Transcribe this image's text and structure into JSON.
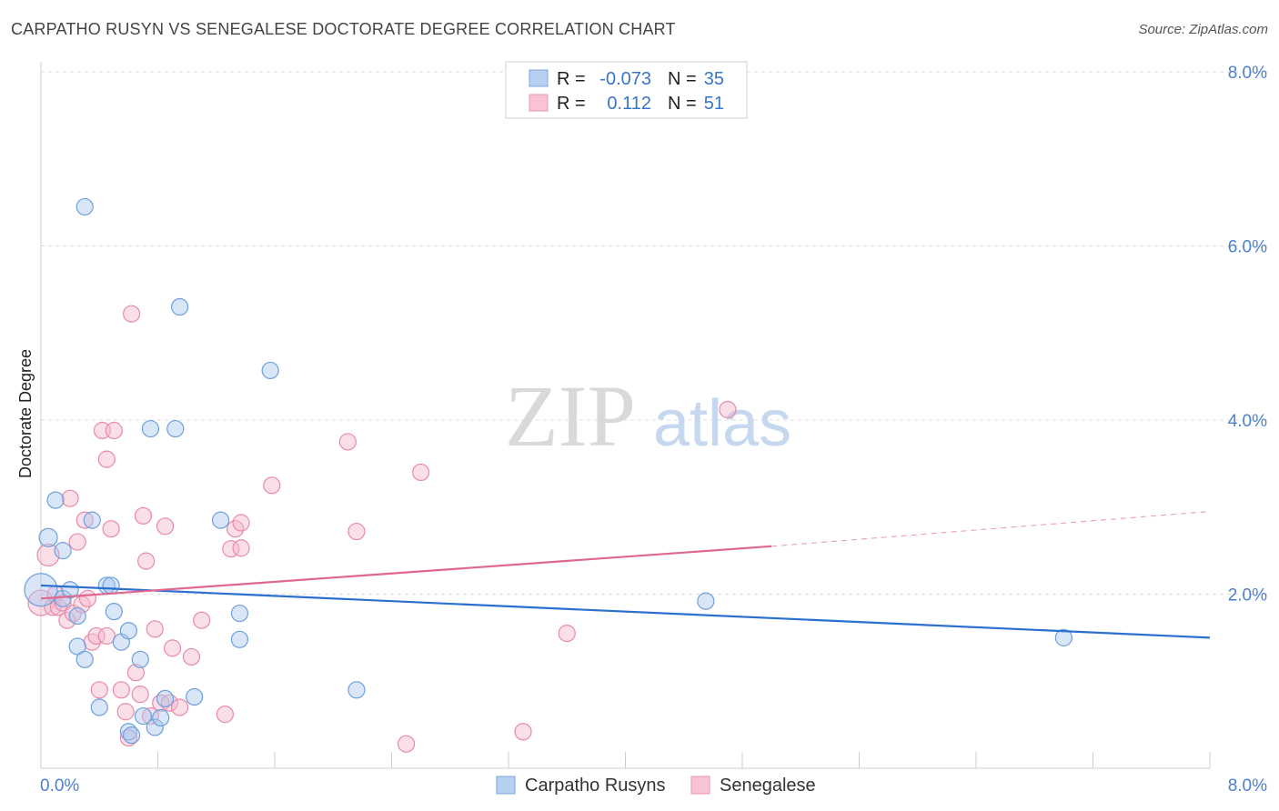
{
  "title": "CARPATHO RUSYN VS SENEGALESE DOCTORATE DEGREE CORRELATION CHART",
  "source": "Source: ZipAtlas.com",
  "watermark": {
    "zip": "ZIP",
    "atlas": "atlas"
  },
  "colors": {
    "blue_fill": "#a8c8f0",
    "blue_stroke": "#6f9fdc",
    "blue_line": "#2b6fcf",
    "pink_fill": "#f5b8cb",
    "pink_stroke": "#e98aa8",
    "pink_line": "#e06790",
    "grid": "#dddddd",
    "axis_text": "#4a7fd0"
  },
  "legend_box": {
    "rows": [
      {
        "r_label": "R =",
        "r_value": "-0.073",
        "n_label": "N =",
        "n_value": "35"
      },
      {
        "r_label": "R =",
        "r_value": "0.112",
        "n_label": "N =",
        "n_value": "51"
      }
    ]
  },
  "chart_data": {
    "type": "scatter",
    "title": "CARPATHO RUSYN VS SENEGALESE DOCTORATE DEGREE CORRELATION CHART",
    "xlabel": "",
    "ylabel": "Doctorate Degree",
    "xlim": [
      0,
      8.0
    ],
    "ylim": [
      0,
      8.0
    ],
    "x_tick_labels": [
      "0.0%",
      "8.0%"
    ],
    "y_tick_labels": [
      "2.0%",
      "4.0%",
      "6.0%",
      "8.0%"
    ],
    "y_ticks": [
      2,
      4,
      6,
      8
    ],
    "grid": true,
    "legend_position": "bottom",
    "series": [
      {
        "name": "Carpatho Rusyns",
        "r": -0.073,
        "n": 35,
        "trend": {
          "x": [
            0,
            8.0
          ],
          "y": [
            2.1,
            1.5
          ]
        },
        "points": [
          [
            0.0,
            2.05,
            18
          ],
          [
            0.05,
            2.65,
            10
          ],
          [
            0.1,
            3.08,
            9
          ],
          [
            0.15,
            1.95,
            9
          ],
          [
            0.15,
            2.5,
            9
          ],
          [
            0.2,
            2.05,
            9
          ],
          [
            0.25,
            1.75,
            9
          ],
          [
            0.25,
            1.4,
            9
          ],
          [
            0.3,
            1.25,
            9
          ],
          [
            0.3,
            6.45,
            9
          ],
          [
            0.35,
            2.85,
            9
          ],
          [
            0.4,
            0.7,
            9
          ],
          [
            0.45,
            2.1,
            9
          ],
          [
            0.48,
            2.1,
            9
          ],
          [
            0.5,
            1.8,
            9
          ],
          [
            0.55,
            1.45,
            9
          ],
          [
            0.6,
            1.58,
            9
          ],
          [
            0.6,
            0.42,
            9
          ],
          [
            0.62,
            0.38,
            9
          ],
          [
            0.68,
            1.25,
            9
          ],
          [
            0.7,
            0.6,
            9
          ],
          [
            0.75,
            3.9,
            9
          ],
          [
            0.78,
            0.47,
            9
          ],
          [
            0.82,
            0.58,
            9
          ],
          [
            0.85,
            0.8,
            9
          ],
          [
            0.92,
            3.9,
            9
          ],
          [
            0.95,
            5.3,
            9
          ],
          [
            1.05,
            0.82,
            9
          ],
          [
            1.23,
            2.85,
            9
          ],
          [
            1.36,
            1.78,
            9
          ],
          [
            1.36,
            1.48,
            9
          ],
          [
            1.57,
            4.57,
            9
          ],
          [
            2.16,
            0.9,
            9
          ],
          [
            4.55,
            1.92,
            9
          ],
          [
            7.0,
            1.5,
            9
          ]
        ]
      },
      {
        "name": "Senegalese",
        "r": 0.112,
        "n": 51,
        "trend": {
          "x": [
            0,
            5.0
          ],
          "y": [
            1.95,
            2.55
          ]
        },
        "trend_dashed": {
          "x": [
            5.0,
            8.0
          ],
          "y": [
            2.55,
            2.95
          ]
        },
        "points": [
          [
            0.0,
            1.9,
            14
          ],
          [
            0.05,
            2.45,
            12
          ],
          [
            0.08,
            1.85,
            9
          ],
          [
            0.1,
            2.0,
            9
          ],
          [
            0.12,
            1.85,
            9
          ],
          [
            0.15,
            1.9,
            9
          ],
          [
            0.18,
            1.7,
            9
          ],
          [
            0.2,
            3.1,
            9
          ],
          [
            0.22,
            1.78,
            9
          ],
          [
            0.25,
            2.6,
            9
          ],
          [
            0.28,
            1.88,
            9
          ],
          [
            0.3,
            2.85,
            9
          ],
          [
            0.32,
            1.95,
            9
          ],
          [
            0.35,
            1.45,
            9
          ],
          [
            0.38,
            1.52,
            9
          ],
          [
            0.4,
            0.9,
            9
          ],
          [
            0.42,
            3.88,
            9
          ],
          [
            0.45,
            1.52,
            9
          ],
          [
            0.45,
            3.55,
            9
          ],
          [
            0.48,
            2.75,
            9
          ],
          [
            0.5,
            3.88,
            9
          ],
          [
            0.55,
            0.9,
            9
          ],
          [
            0.58,
            0.65,
            9
          ],
          [
            0.6,
            0.35,
            9
          ],
          [
            0.62,
            5.22,
            9
          ],
          [
            0.65,
            1.1,
            9
          ],
          [
            0.68,
            0.85,
            9
          ],
          [
            0.7,
            2.9,
            9
          ],
          [
            0.72,
            2.38,
            9
          ],
          [
            0.75,
            0.6,
            9
          ],
          [
            0.78,
            1.6,
            9
          ],
          [
            0.82,
            0.75,
            9
          ],
          [
            0.85,
            2.78,
            9
          ],
          [
            0.88,
            0.75,
            9
          ],
          [
            0.9,
            1.38,
            9
          ],
          [
            0.95,
            0.7,
            9
          ],
          [
            1.03,
            1.28,
            9
          ],
          [
            1.1,
            1.7,
            9
          ],
          [
            1.26,
            0.62,
            9
          ],
          [
            1.3,
            2.52,
            9
          ],
          [
            1.33,
            2.75,
            9
          ],
          [
            1.37,
            2.82,
            9
          ],
          [
            1.37,
            2.53,
            9
          ],
          [
            1.58,
            3.25,
            9
          ],
          [
            2.1,
            3.75,
            9
          ],
          [
            2.16,
            2.72,
            9
          ],
          [
            2.5,
            0.28,
            9
          ],
          [
            2.6,
            3.4,
            9
          ],
          [
            3.3,
            0.42,
            9
          ],
          [
            3.6,
            1.55,
            9
          ],
          [
            4.7,
            4.12,
            9
          ]
        ]
      }
    ]
  }
}
